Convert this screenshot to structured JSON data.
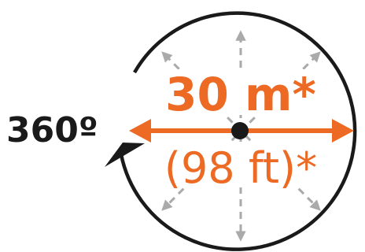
{
  "rotation_label": "360º",
  "range_metric": "30 m*",
  "range_imperial": "(98 ft)*",
  "colors": {
    "accent": "#ec6a24",
    "circle": "#1a1a1a",
    "guide": "#aaaaaa",
    "background": "#ffffff"
  },
  "icons": {
    "rotation": "curved-arrow-icon",
    "center": "center-dot-icon",
    "range": "double-arrow-icon"
  }
}
